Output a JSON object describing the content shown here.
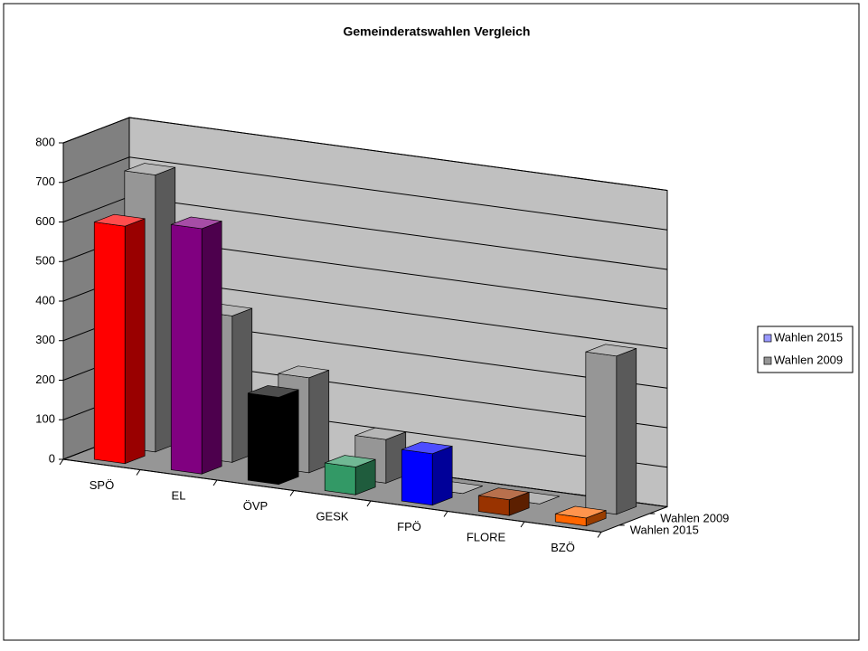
{
  "chart_data": {
    "type": "bar3d",
    "title": "Gemeinderatswahlen Vergleich",
    "categories": [
      "SPÖ",
      "EL",
      "ÖVP",
      "GESK",
      "FPÖ",
      "FLORE",
      "BZÖ"
    ],
    "series": [
      {
        "name": "Wahlen 2015",
        "color": "#9999ff",
        "colors": [
          "#ff0000",
          "#800080",
          "#000000",
          "#339966",
          "#0000ff",
          "#993300",
          "#ff6600"
        ],
        "values": [
          600,
          620,
          220,
          70,
          130,
          40,
          20
        ]
      },
      {
        "name": "Wahlen 2009",
        "color": "#969696",
        "values": [
          700,
          370,
          240,
          110,
          0,
          0,
          400
        ]
      }
    ],
    "ylim": [
      0,
      800
    ],
    "yticks": [
      0,
      100,
      200,
      300,
      400,
      500,
      600,
      700,
      800
    ],
    "grid": true,
    "legend": "right"
  }
}
